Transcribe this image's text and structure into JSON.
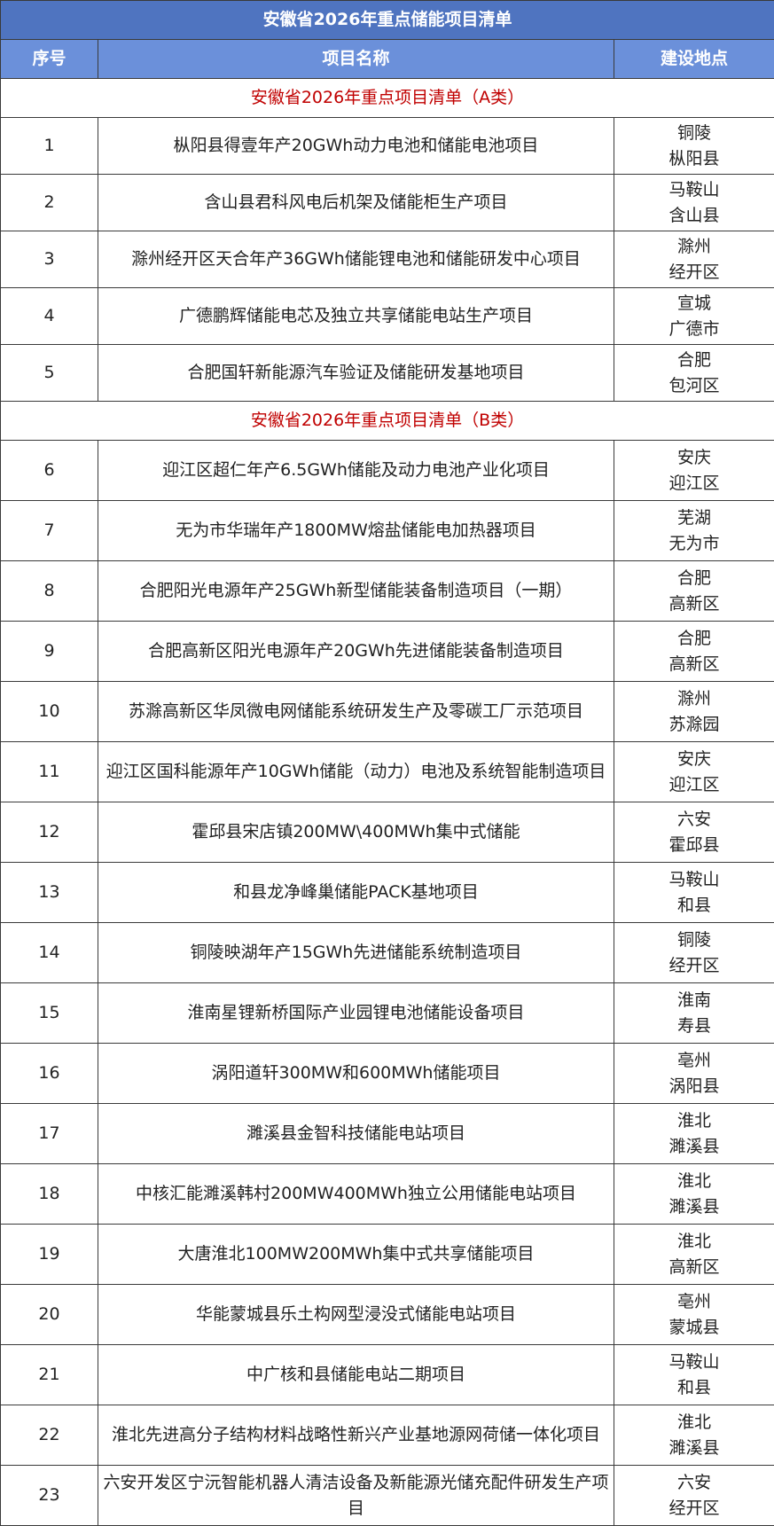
{
  "title": "安徽省2026年重点储能项目清单",
  "header": [
    "序号",
    "项目名称",
    "建设地点"
  ],
  "sections": [
    {
      "title": "安徽省2026年重点项目清单（A类）",
      "rows": [
        [
          "1",
          "枞阳县得壹年产20GWh动力电池和储能电池项目",
          [
            "铜陵",
            "枞阳县"
          ]
        ],
        [
          "2",
          "含山县君科风电后机架及储能柜生产项目",
          [
            "马鞍山",
            "含山县"
          ]
        ],
        [
          "3",
          "滁州经开区天合年产36GWh储能锂电池和储能研发中心项目",
          [
            "滁州",
            "经开区"
          ]
        ],
        [
          "4",
          "广德鹏辉储能电芯及独立共享储能电站生产项目",
          [
            "宣城",
            "广德市"
          ]
        ],
        [
          "5",
          "合肥国轩新能源汽车验证及储能研发基地项目",
          [
            "合肥",
            "包河区"
          ]
        ]
      ]
    },
    {
      "title": "安徽省2026年重点项目清单（B类）",
      "rows": [
        [
          "6",
          "迎江区超仁年产6.5GWh储能及动力电池产业化项目",
          [
            "安庆",
            "迎江区"
          ]
        ],
        [
          "7",
          "无为市华瑞年产1800MW熔盐储能电加热器项目",
          [
            "芜湖",
            "无为市"
          ]
        ],
        [
          "8",
          "合肥阳光电源年产25GWh新型储能装备制造项目（一期）",
          [
            "合肥",
            "高新区"
          ]
        ],
        [
          "9",
          "合肥高新区阳光电源年产20GWh先进储能装备制造项目",
          [
            "合肥",
            "高新区"
          ]
        ],
        [
          "10",
          "苏滁高新区华凤微电网储能系统研发生产及零碳工厂示范项目",
          [
            "滁州",
            "苏滁园"
          ]
        ],
        [
          "11",
          "迎江区国科能源年产10GWh储能（动力）电池及系统智能制造项目",
          [
            "安庆",
            "迎江区"
          ]
        ],
        [
          "12",
          "霍邱县宋店镇200MW\\400MWh集中式储能",
          [
            "六安",
            "霍邱县"
          ]
        ],
        [
          "13",
          "和县龙净峰巢储能PACK基地项目",
          [
            "马鞍山",
            "和县"
          ]
        ],
        [
          "14",
          "铜陵映湖年产15GWh先进储能系统制造项目",
          [
            "铜陵",
            "经开区"
          ]
        ],
        [
          "15",
          "淮南星锂新桥国际产业园锂电池储能设备项目",
          [
            "淮南",
            "寿县"
          ]
        ],
        [
          "16",
          "涡阳道轩300MW和600MWh储能项目",
          [
            "亳州",
            "涡阳县"
          ]
        ],
        [
          "17",
          "濉溪县金智科技储能电站项目",
          [
            "淮北",
            "濉溪县"
          ]
        ],
        [
          "18",
          "中核汇能濉溪韩村200MW400MWh独立公用储能电站项目",
          [
            "淮北",
            "濉溪县"
          ]
        ],
        [
          "19",
          "大唐淮北100MW200MWh集中式共享储能项目",
          [
            "淮北",
            "高新区"
          ]
        ],
        [
          "20",
          "华能蒙城县乐土构网型浸没式储能电站项目",
          [
            "亳州",
            "蒙城县"
          ]
        ],
        [
          "21",
          "中广核和县储能电站二期项目",
          [
            "马鞍山",
            "和县"
          ]
        ],
        [
          "22",
          "淮北先进高分子结构材料战略性新兴产业基地源网荷储一体化项目",
          [
            "淮北",
            "濉溪县"
          ]
        ],
        [
          "23",
          "六安开发区宁沅智能机器人清洁设备及新能源光储充配件研发生产项目",
          [
            "六安",
            "经开区"
          ]
        ]
      ]
    }
  ]
}
